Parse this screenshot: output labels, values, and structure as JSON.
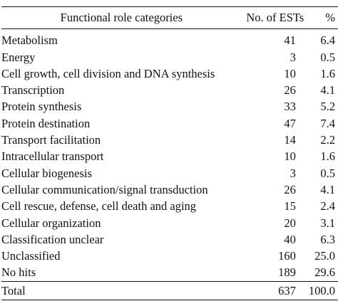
{
  "table": {
    "headers": {
      "role": "Functional role categories",
      "ests": "No. of ESTs",
      "pct": "%"
    },
    "rows": [
      {
        "category": "Metabolism",
        "ests": "41",
        "percent": "6.4"
      },
      {
        "category": "Energy",
        "ests": "3",
        "percent": "0.5"
      },
      {
        "category": "Cell growth, cell division and DNA synthesis",
        "ests": "10",
        "percent": "1.6"
      },
      {
        "category": "Transcription",
        "ests": "26",
        "percent": "4.1"
      },
      {
        "category": "Protein synthesis",
        "ests": "33",
        "percent": "5.2"
      },
      {
        "category": "Protein destination",
        "ests": "47",
        "percent": "7.4"
      },
      {
        "category": "Transport facilitation",
        "ests": "14",
        "percent": "2.2"
      },
      {
        "category": "Intracellular transport",
        "ests": "10",
        "percent": "1.6"
      },
      {
        "category": "Cellular biogenesis",
        "ests": "3",
        "percent": "0.5"
      },
      {
        "category": "Cellular communication/signal transduction",
        "ests": "26",
        "percent": "4.1"
      },
      {
        "category": "Cell rescue, defense, cell death and aging",
        "ests": "15",
        "percent": "2.4"
      },
      {
        "category": "Cellular organization",
        "ests": "20",
        "percent": "3.1"
      },
      {
        "category": "Classification unclear",
        "ests": "40",
        "percent": "6.3"
      },
      {
        "category": "Unclassified",
        "ests": "160",
        "percent": "25.0"
      },
      {
        "category": "No hits",
        "ests": "189",
        "percent": "29.6"
      }
    ],
    "total": {
      "category": "Total",
      "ests": "637",
      "percent": "100.0"
    }
  }
}
